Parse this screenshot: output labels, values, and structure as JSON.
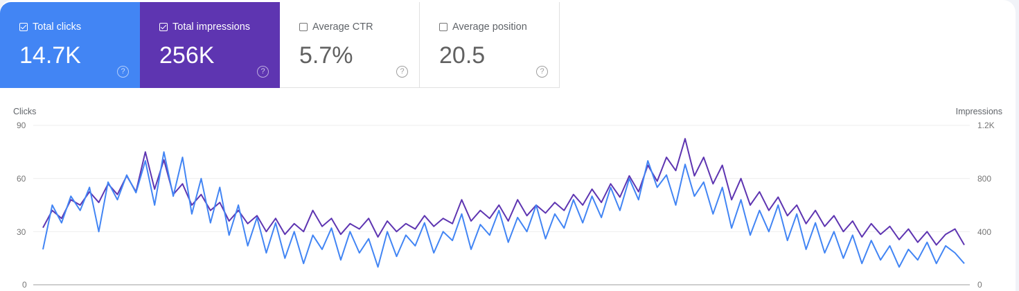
{
  "metrics": [
    {
      "label": "Total clicks",
      "value": "14.7K",
      "checked": true,
      "color": "#4285f4"
    },
    {
      "label": "Total impressions",
      "value": "256K",
      "checked": true,
      "color": "#5e35b1"
    },
    {
      "label": "Average CTR",
      "value": "5.7%",
      "checked": false
    },
    {
      "label": "Average position",
      "value": "20.5",
      "checked": false
    }
  ],
  "help_icon": "?",
  "chart_data": {
    "type": "line",
    "grid": true,
    "left_axis": {
      "label": "Clicks",
      "ticks": [
        "90",
        "60",
        "30",
        "0"
      ],
      "range": [
        0,
        90
      ]
    },
    "right_axis": {
      "label": "Impressions",
      "ticks": [
        "1.2K",
        "800",
        "400",
        "0"
      ],
      "range": [
        0,
        1200
      ]
    },
    "series": [
      {
        "name": "Clicks",
        "axis": "left",
        "color": "#4285f4",
        "values": [
          20,
          45,
          35,
          50,
          42,
          55,
          30,
          58,
          48,
          62,
          52,
          70,
          45,
          75,
          50,
          72,
          40,
          60,
          35,
          55,
          28,
          45,
          22,
          38,
          18,
          35,
          15,
          30,
          12,
          28,
          20,
          32,
          14,
          30,
          18,
          26,
          10,
          30,
          16,
          28,
          22,
          35,
          18,
          30,
          25,
          40,
          20,
          34,
          28,
          42,
          24,
          38,
          30,
          45,
          26,
          40,
          32,
          48,
          35,
          50,
          38,
          55,
          42,
          60,
          48,
          70,
          55,
          62,
          45,
          68,
          50,
          58,
          40,
          55,
          32,
          48,
          28,
          42,
          30,
          45,
          25,
          40,
          20,
          35,
          18,
          30,
          15,
          28,
          12,
          25,
          14,
          22,
          10,
          20,
          14,
          24,
          12,
          22,
          18,
          12
        ]
      },
      {
        "name": "Impressions",
        "axis": "right",
        "color": "#5e35b1",
        "values": [
          430,
          560,
          500,
          640,
          600,
          700,
          620,
          760,
          680,
          820,
          700,
          1000,
          720,
          940,
          680,
          760,
          600,
          680,
          560,
          620,
          480,
          560,
          460,
          520,
          400,
          500,
          380,
          460,
          400,
          560,
          440,
          500,
          380,
          460,
          420,
          500,
          360,
          480,
          400,
          460,
          420,
          520,
          440,
          500,
          460,
          640,
          480,
          560,
          500,
          600,
          480,
          640,
          520,
          600,
          540,
          620,
          560,
          680,
          600,
          720,
          620,
          760,
          660,
          820,
          700,
          900,
          780,
          960,
          860,
          1100,
          820,
          960,
          760,
          900,
          640,
          800,
          600,
          700,
          560,
          660,
          520,
          600,
          460,
          560,
          440,
          520,
          400,
          480,
          360,
          460,
          380,
          440,
          340,
          420,
          320,
          400,
          300,
          380,
          420,
          300
        ]
      }
    ]
  }
}
